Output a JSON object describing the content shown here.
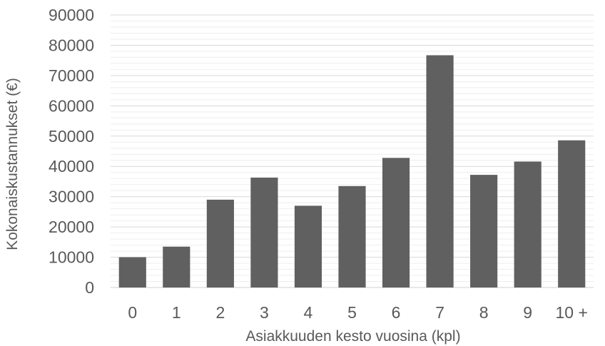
{
  "chart_data": {
    "type": "bar",
    "title": "",
    "xlabel": "Asiakkuuden kesto vuosina (kpl)",
    "ylabel": "Kokonaiskustannukset (€)",
    "categories": [
      "0",
      "1",
      "2",
      "3",
      "4",
      "5",
      "6",
      "7",
      "8",
      "9",
      "10 +"
    ],
    "values": [
      10000,
      13500,
      29000,
      36300,
      27000,
      33500,
      42800,
      76700,
      37200,
      41600,
      48600
    ],
    "ylim": [
      0,
      90000
    ],
    "yticks": [
      "0",
      "10000",
      "20000",
      "30000",
      "40000",
      "50000",
      "60000",
      "70000",
      "80000",
      "90000"
    ],
    "grid": true,
    "minor_gridlines": true,
    "bar_color": "#606060",
    "gridline_color": "#d9d9d9",
    "text_color": "#595959"
  }
}
